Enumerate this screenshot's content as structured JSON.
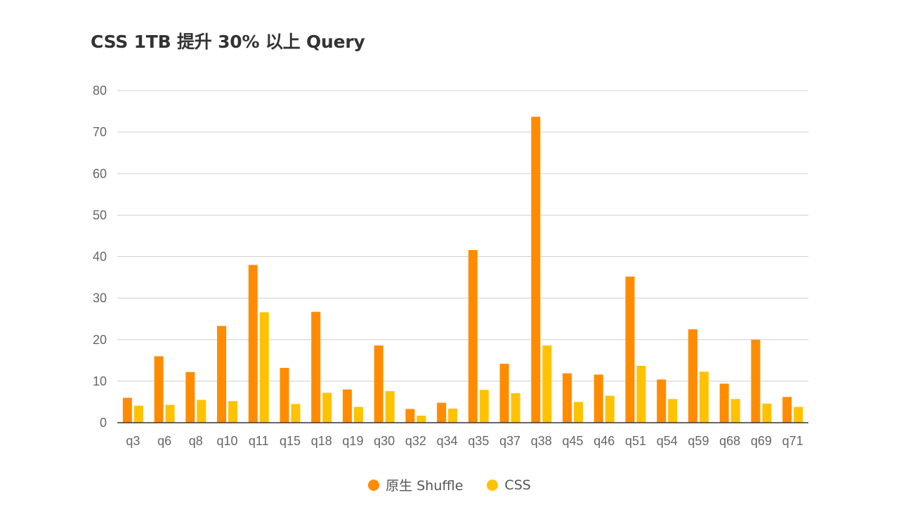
{
  "chart_data": {
    "type": "bar",
    "title": "CSS 1TB 提升 30% 以上 Query",
    "xlabel": "",
    "ylabel": "",
    "ylim": [
      0,
      80
    ],
    "yticks": [
      0,
      10,
      20,
      30,
      40,
      50,
      60,
      70,
      80
    ],
    "grid": true,
    "legend_position": "bottom",
    "categories": [
      "q3",
      "q6",
      "q8",
      "q10",
      "q11",
      "q15",
      "q18",
      "q19",
      "q30",
      "q32",
      "q34",
      "q35",
      "q37",
      "q38",
      "q45",
      "q46",
      "q51",
      "q54",
      "q59",
      "q68",
      "q69",
      "q71"
    ],
    "series": [
      {
        "name": "原生 Shuffle",
        "color": "#FF8C00",
        "values": [
          6,
          16,
          12.2,
          23.3,
          38,
          13.2,
          26.7,
          8,
          18.6,
          3.3,
          4.8,
          41.6,
          14.2,
          73.7,
          11.9,
          11.6,
          35.2,
          10.4,
          22.5,
          9.4,
          20,
          6.2
        ]
      },
      {
        "name": "CSS",
        "color": "#FFC200",
        "values": [
          4.1,
          4.3,
          5.5,
          5.2,
          26.6,
          4.5,
          7.2,
          3.8,
          7.6,
          1.7,
          3.4,
          7.9,
          7.1,
          18.6,
          5,
          6.5,
          13.7,
          5.7,
          12.3,
          5.7,
          4.6,
          3.8
        ]
      }
    ]
  }
}
